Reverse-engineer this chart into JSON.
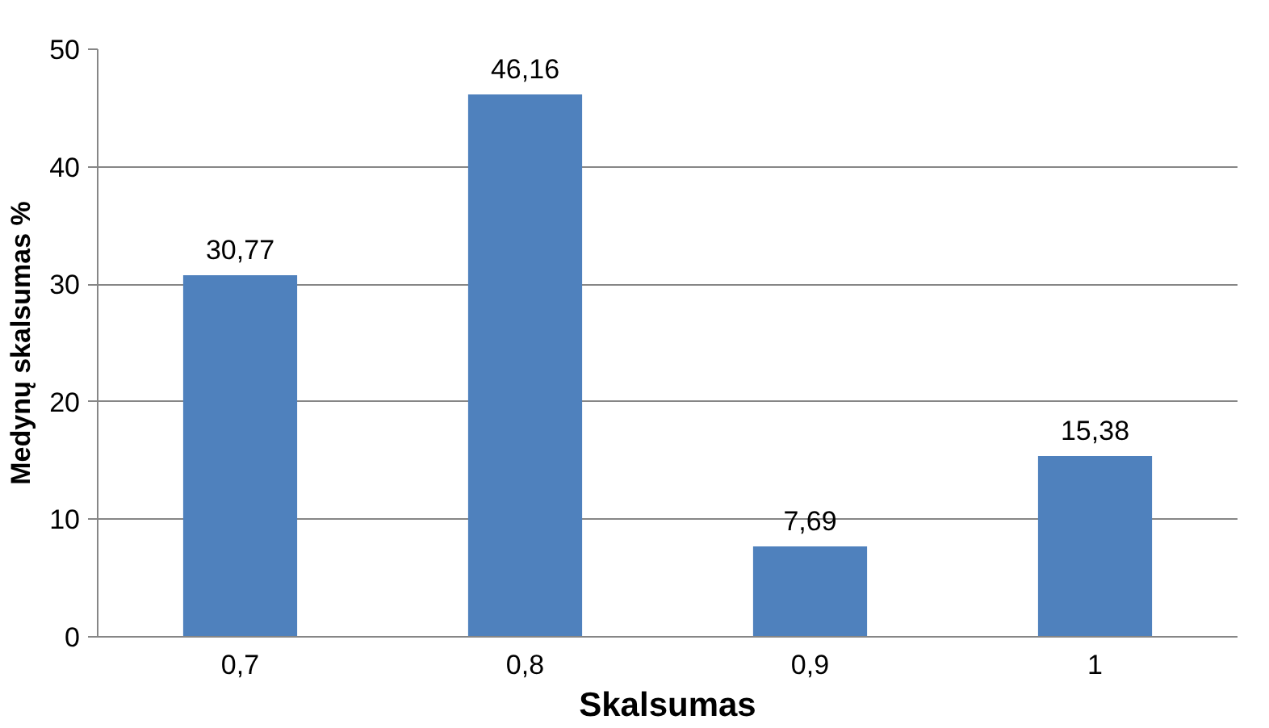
{
  "chart_data": {
    "type": "bar",
    "xlabel": "Skalsumas",
    "ylabel": "Medynų skalsumas %",
    "categories": [
      "0,7",
      "0,8",
      "0,9",
      "1"
    ],
    "values": [
      30.77,
      46.16,
      7.69,
      15.38
    ],
    "value_labels": [
      "30,77",
      "46,16",
      "7,69",
      "15,38"
    ],
    "color": "#4f81bd",
    "ylim": [
      0,
      50
    ],
    "yticks": [
      0,
      10,
      20,
      30,
      40,
      50
    ],
    "grid": "y"
  }
}
